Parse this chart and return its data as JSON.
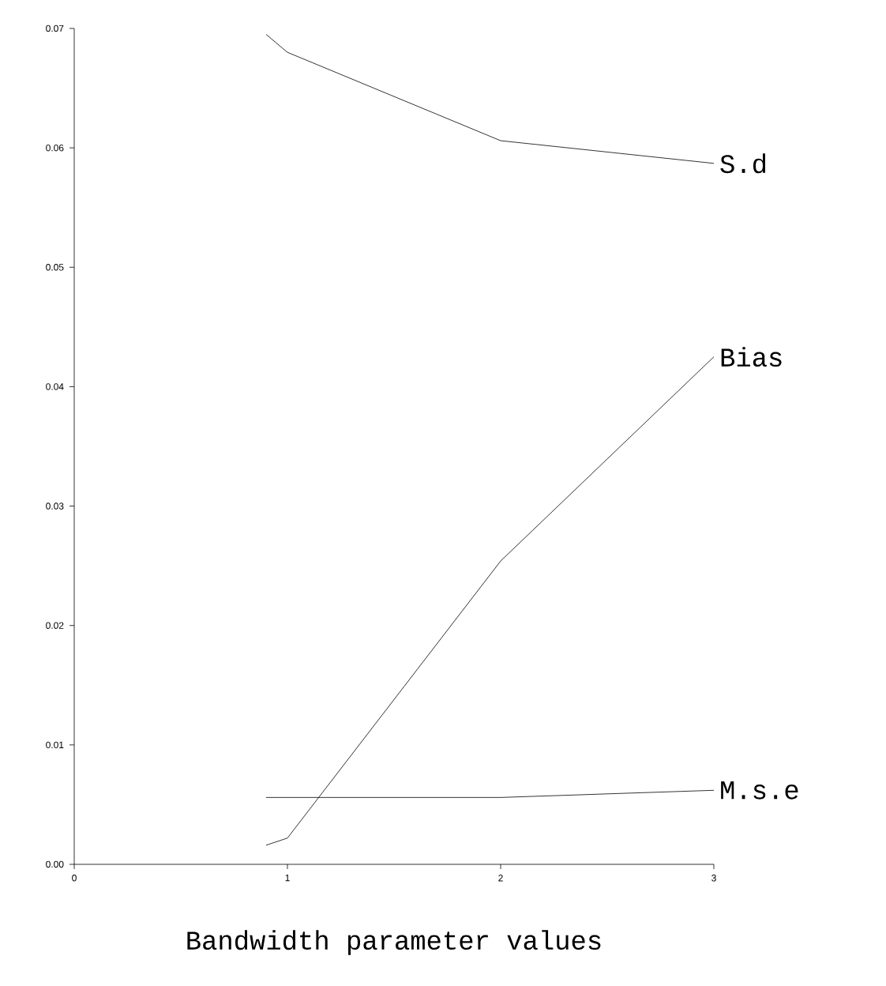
{
  "chart_data": {
    "type": "line",
    "xlabel": "Bandwidth parameter values",
    "x": [
      0.9,
      1,
      2,
      3
    ],
    "xlim": [
      0,
      3
    ],
    "xticks": [
      0,
      1,
      2,
      3
    ],
    "ylim": [
      0,
      0.07
    ],
    "yticks": [
      {
        "value": 0,
        "label": "0.00"
      },
      {
        "value": 0.01,
        "label": "0.01"
      },
      {
        "value": 0.02,
        "label": "0.02"
      },
      {
        "value": 0.03,
        "label": "0.03"
      },
      {
        "value": 0.04,
        "label": "0.04"
      },
      {
        "value": 0.05,
        "label": "0.05"
      },
      {
        "value": 0.06,
        "label": "0.06"
      },
      {
        "value": 0.07,
        "label": "0.07"
      }
    ],
    "series": [
      {
        "name": "S.d",
        "color": "#000000",
        "values": [
          0.0695,
          0.068,
          0.0606,
          0.0587
        ]
      },
      {
        "name": "Bias",
        "color": "#000000",
        "values": [
          0.0016,
          0.0022,
          0.0254,
          0.0425
        ]
      },
      {
        "name": "M.s.e",
        "color": "#000000",
        "values": [
          0.0056,
          0.0056,
          0.0056,
          0.0062
        ]
      }
    ],
    "grid": false,
    "legend": false,
    "marker": "none",
    "line_style": "solid"
  }
}
